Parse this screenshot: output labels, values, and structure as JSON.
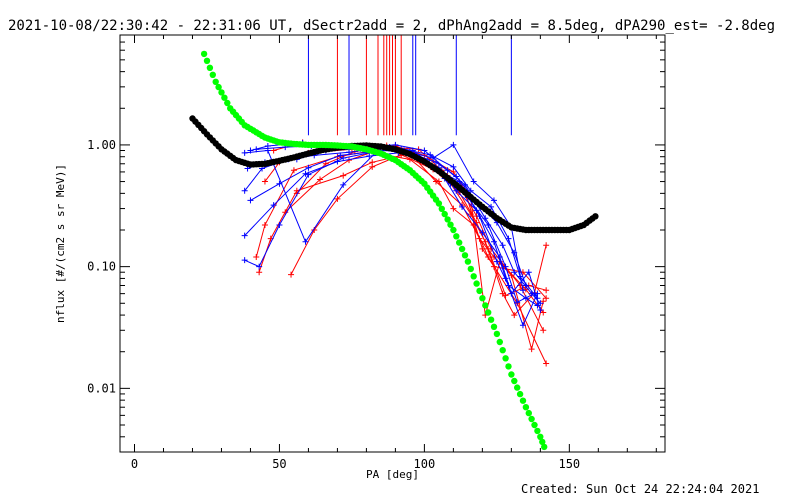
{
  "title": "2021-10-08/22:30:42 - 22:31:06 UT, dSectr2add = 2, dPhAng2add = 8.5deg, dPA290_est= -2.8deg",
  "footer": "Created: Sun Oct 24 22:24:04 2021",
  "chart_data": {
    "type": "scatter",
    "xlabel": "PA [deg]",
    "ylabel": "nflux [#/(cm2 s sr MeV)]",
    "xlim": [
      -5,
      183
    ],
    "ylim": [
      0.003,
      8.0
    ],
    "yscale": "log",
    "xticks": [
      0,
      50,
      100,
      150
    ],
    "yticks": [
      0.01,
      0.1,
      1.0
    ],
    "ytick_labels": [
      "0.01",
      "0.10",
      "1.00"
    ],
    "colors": {
      "red": "#ff0000",
      "blue": "#0000ff",
      "fit_black": "#000000",
      "fit_green": "#00ff00",
      "frame": "#000000"
    },
    "sector_marks": {
      "ymin": 1.2,
      "red_x": [
        70,
        80,
        84,
        86,
        87,
        88,
        89,
        90,
        92
      ],
      "blue_x": [
        60,
        74,
        96,
        97,
        111,
        130
      ]
    },
    "fit_black": {
      "x": [
        20,
        25,
        30,
        35,
        40,
        45,
        50,
        55,
        60,
        65,
        70,
        75,
        80,
        85,
        90,
        95,
        100,
        105,
        110,
        115,
        120,
        125,
        130,
        135,
        140,
        145,
        150,
        155,
        160
      ],
      "y": [
        1.65,
        1.22,
        0.92,
        0.75,
        0.69,
        0.7,
        0.74,
        0.79,
        0.85,
        0.91,
        0.95,
        0.98,
        0.99,
        0.97,
        0.92,
        0.84,
        0.73,
        0.61,
        0.49,
        0.39,
        0.31,
        0.25,
        0.21,
        0.2,
        0.2,
        0.2,
        0.2,
        0.22,
        0.27
      ]
    },
    "fit_green": {
      "x": [
        24,
        28,
        33,
        38,
        45,
        50,
        55,
        60,
        65,
        70,
        75,
        80,
        85,
        90,
        95,
        100,
        105,
        110,
        115,
        120,
        125,
        130,
        135,
        140,
        142
      ],
      "y": [
        5.6,
        3.3,
        2.0,
        1.45,
        1.15,
        1.05,
        1.02,
        1.0,
        1.0,
        0.99,
        0.97,
        0.92,
        0.85,
        0.75,
        0.62,
        0.48,
        0.33,
        0.2,
        0.11,
        0.055,
        0.028,
        0.013,
        0.007,
        0.004,
        0.003
      ]
    },
    "red_lines": [
      {
        "x": [
          42,
          45,
          55,
          70,
          80,
          95,
          105,
          110,
          117,
          122,
          132,
          142
        ],
        "y": [
          0.12,
          0.22,
          0.62,
          0.8,
          0.88,
          0.76,
          0.5,
          0.3,
          0.22,
          0.12,
          0.05,
          0.016
        ]
      },
      {
        "x": [
          43,
          47,
          56,
          72,
          82,
          96,
          106,
          112,
          118,
          123,
          133,
          141
        ],
        "y": [
          0.09,
          0.17,
          0.42,
          0.56,
          0.72,
          0.86,
          0.62,
          0.46,
          0.26,
          0.14,
          0.07,
          0.03
        ]
      },
      {
        "x": [
          45,
          50,
          60,
          75,
          88,
          98,
          108,
          114,
          120,
          124,
          134,
          142
        ],
        "y": [
          0.5,
          0.72,
          0.86,
          0.92,
          0.96,
          0.92,
          0.56,
          0.42,
          0.14,
          0.1,
          0.09,
          0.055
        ]
      },
      {
        "x": [
          48,
          58,
          68,
          84,
          90,
          100,
          110,
          116,
          121,
          126,
          135,
          141
        ],
        "y": [
          0.9,
          1.05,
          0.98,
          0.93,
          0.98,
          0.82,
          0.6,
          0.36,
          0.04,
          0.11,
          0.065,
          0.042
        ]
      },
      {
        "x": [
          54,
          62,
          70,
          82,
          92,
          103,
          112,
          118,
          122,
          128,
          136,
          142
        ],
        "y": [
          0.086,
          0.2,
          0.36,
          0.66,
          0.83,
          0.63,
          0.41,
          0.23,
          0.14,
          0.058,
          0.07,
          0.064
        ]
      },
      {
        "x": [
          52,
          64,
          74,
          86,
          94,
          104,
          113,
          119,
          124,
          130,
          137,
          141
        ],
        "y": [
          0.28,
          0.52,
          0.75,
          0.94,
          0.91,
          0.5,
          0.32,
          0.17,
          0.12,
          0.085,
          0.021,
          0.052
        ]
      },
      {
        "x": [
          56,
          66,
          76,
          87,
          95,
          107,
          116,
          121,
          127,
          131,
          138,
          142
        ],
        "y": [
          0.4,
          0.7,
          0.88,
          0.99,
          0.86,
          0.57,
          0.27,
          0.16,
          0.06,
          0.04,
          0.061,
          0.15
        ]
      }
    ],
    "blue_lines": [
      {
        "x": [
          38,
          43,
          50,
          60,
          72,
          85,
          95,
          105,
          111,
          118,
          124,
          128,
          134,
          139
        ],
        "y": [
          0.113,
          0.1,
          0.22,
          0.57,
          0.78,
          0.9,
          0.88,
          0.65,
          0.42,
          0.29,
          0.16,
          0.08,
          0.033,
          0.06
        ]
      },
      {
        "x": [
          38,
          44,
          53,
          62,
          74,
          86,
          96,
          106,
          112,
          119,
          125,
          129,
          135,
          139
        ],
        "y": [
          0.42,
          0.64,
          0.76,
          0.82,
          0.87,
          0.95,
          0.9,
          0.6,
          0.5,
          0.26,
          0.11,
          0.07,
          0.055,
          0.048
        ]
      },
      {
        "x": [
          39,
          45,
          56,
          66,
          78,
          88,
          98,
          107,
          113,
          120,
          126,
          130,
          136,
          140
        ],
        "y": [
          0.64,
          0.72,
          0.76,
          0.9,
          0.93,
          0.96,
          0.78,
          0.53,
          0.31,
          0.19,
          0.12,
          0.06,
          0.09,
          0.044
        ]
      },
      {
        "x": [
          40,
          46,
          58,
          68,
          80,
          90,
          100,
          108,
          114,
          121,
          127,
          131,
          137,
          140
        ],
        "y": [
          0.9,
          0.98,
          1.04,
          0.99,
          0.97,
          1.0,
          0.9,
          0.62,
          0.47,
          0.25,
          0.15,
          0.09,
          0.06,
          0.05
        ]
      },
      {
        "x": [
          38,
          48,
          59,
          70,
          81,
          91,
          101,
          109,
          115,
          122,
          128,
          132,
          138
        ],
        "y": [
          0.18,
          0.32,
          0.58,
          0.73,
          0.81,
          0.86,
          0.74,
          0.48,
          0.37,
          0.22,
          0.1,
          0.051,
          0.06
        ]
      },
      {
        "x": [
          40,
          50,
          60,
          71,
          82,
          92,
          102,
          110,
          116,
          123,
          129,
          133,
          139
        ],
        "y": [
          0.35,
          0.48,
          0.65,
          0.82,
          0.88,
          0.93,
          0.83,
          0.66,
          0.42,
          0.31,
          0.17,
          0.083,
          0.055
        ]
      },
      {
        "x": [
          42,
          52,
          61,
          73,
          84,
          93,
          103,
          110,
          117,
          124,
          130,
          134
        ],
        "y": [
          0.92,
          0.96,
          0.98,
          0.98,
          0.96,
          0.9,
          0.78,
          1.0,
          0.5,
          0.35,
          0.21,
          0.064
        ]
      },
      {
        "x": [
          38,
          46,
          59,
          72,
          85,
          94,
          104,
          111,
          118,
          125,
          131,
          135
        ],
        "y": [
          0.86,
          0.9,
          0.16,
          0.47,
          0.95,
          0.88,
          0.72,
          0.55,
          0.34,
          0.23,
          0.13,
          0.07
        ]
      }
    ]
  }
}
